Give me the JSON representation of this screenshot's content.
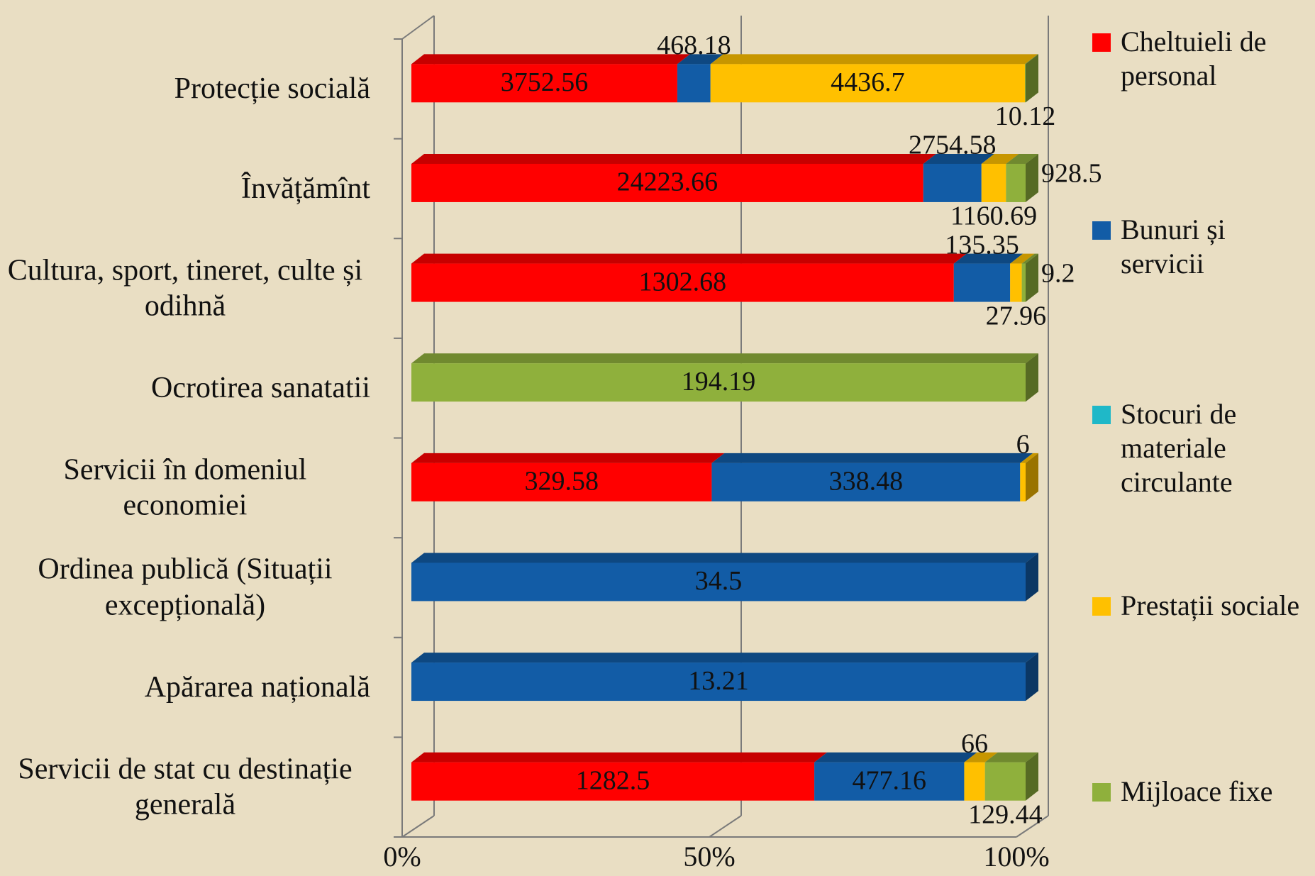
{
  "chart_data": {
    "type": "bar",
    "orientation": "horizontal",
    "stacking": "percent",
    "categories": [
      "Protecție socială",
      "Învățămînt",
      "Cultura, sport, tineret, culte și odihnă",
      "Ocrotirea sanatatii",
      "Servicii în domeniul economiei",
      "Ordinea publică (Situații excepțională)",
      "Apărarea națională",
      "Servicii de stat cu destinație generală"
    ],
    "series": [
      {
        "name": "Cheltuieli de personal",
        "color": "#ff0000",
        "values": [
          3752.56,
          24223.66,
          1302.68,
          null,
          329.58,
          null,
          null,
          1282.5
        ]
      },
      {
        "name": "Bunuri și servicii",
        "color": "#125ca6",
        "values": [
          468.18,
          2754.58,
          135.35,
          null,
          338.48,
          34.5,
          13.21,
          477.16
        ]
      },
      {
        "name": "Stocuri de materiale circulante",
        "color": "#1fb8c8",
        "values": [
          null,
          null,
          null,
          null,
          null,
          null,
          null,
          null
        ]
      },
      {
        "name": "Prestații sociale",
        "color": "#ffc000",
        "values": [
          4436.7,
          1160.69,
          27.96,
          null,
          6,
          null,
          null,
          66
        ]
      },
      {
        "name": "Mijloace fixe",
        "color": "#8fb03c",
        "values": [
          10.12,
          928.5,
          9.2,
          194.19,
          null,
          null,
          null,
          129.44
        ]
      }
    ],
    "xlim": [
      0,
      100
    ],
    "xticks": [
      {
        "value": 0,
        "label": "0%"
      },
      {
        "value": 50,
        "label": "50%"
      },
      {
        "value": 100,
        "label": "100%"
      }
    ],
    "grid": true,
    "legend": "right"
  }
}
